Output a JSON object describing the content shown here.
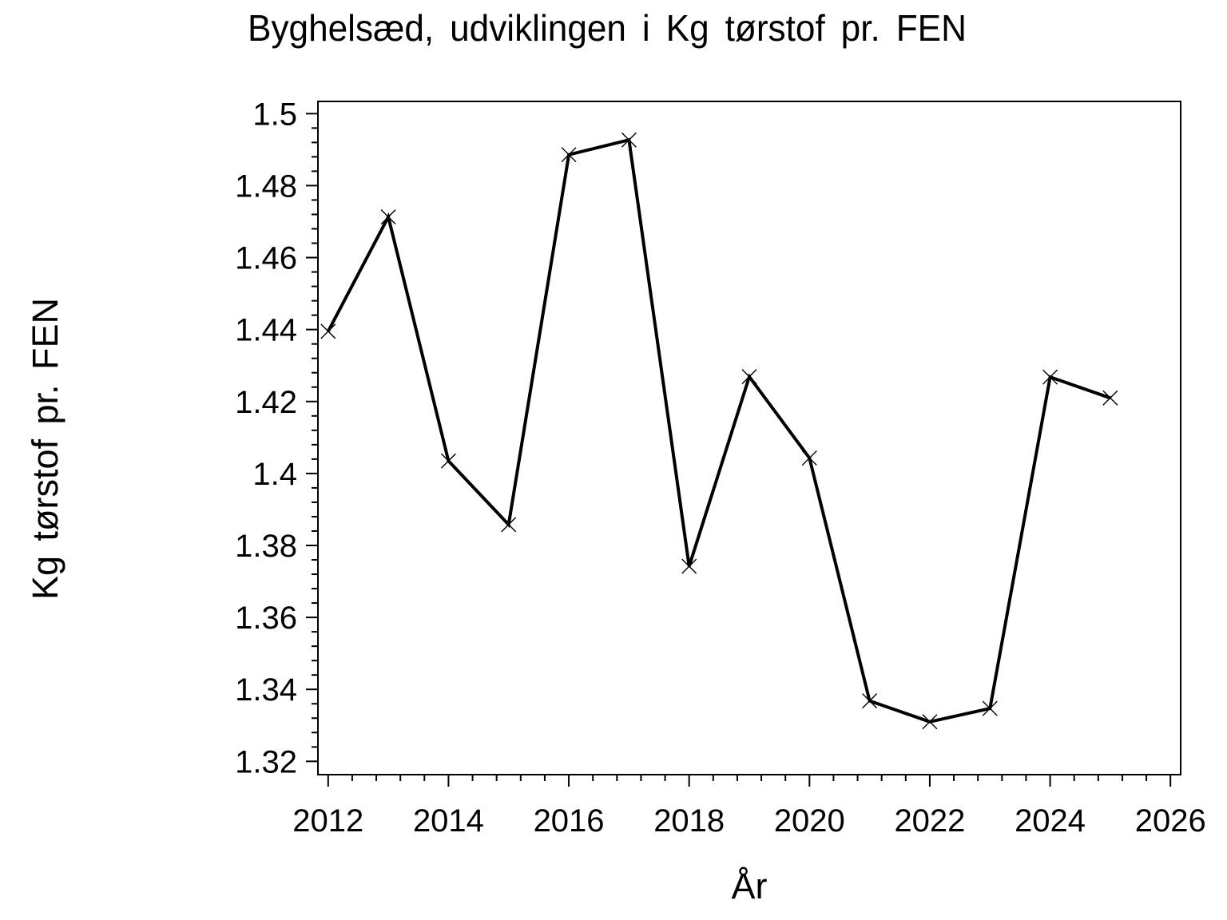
{
  "page": {
    "background": "#ffffff",
    "foreground": "#000000"
  },
  "chart_data": {
    "type": "line",
    "title": "Byghelsæd, udviklingen i Kg tørstof pr. FEN",
    "xlabel": "År",
    "ylabel": "Kg tørstof pr. FEN",
    "x": [
      2012,
      2013,
      2014,
      2015,
      2016,
      2017,
      2018,
      2019,
      2020,
      2021,
      2022,
      2023,
      2024,
      2025
    ],
    "values": [
      1.4395,
      1.4713,
      1.4035,
      1.3858,
      1.4886,
      1.4927,
      1.3742,
      1.4269,
      1.4043,
      1.3368,
      1.331,
      1.3347,
      1.4268,
      1.421
    ],
    "x_ticks": [
      2012,
      2014,
      2016,
      2018,
      2020,
      2022,
      2024,
      2026
    ],
    "x_tick_labels": [
      "2012",
      "2014",
      "2016",
      "2018",
      "2020",
      "2022",
      "2024",
      "2026"
    ],
    "y_ticks": [
      1.32,
      1.34,
      1.36,
      1.38,
      1.4,
      1.42,
      1.44,
      1.46,
      1.48,
      1.5
    ],
    "y_tick_labels": [
      "1.32",
      "1.34",
      "1.36",
      "1.38",
      "1.4",
      "1.42",
      "1.44",
      "1.46",
      "1.48",
      "1.5"
    ],
    "x_minor_step": 0.4,
    "y_minor_step": 0.004,
    "xlim": [
      2011.83,
      2026.17
    ],
    "ylim": [
      1.3163,
      1.5034
    ],
    "marker": "x",
    "line_color": "#000000",
    "grid": false,
    "legend": null
  }
}
